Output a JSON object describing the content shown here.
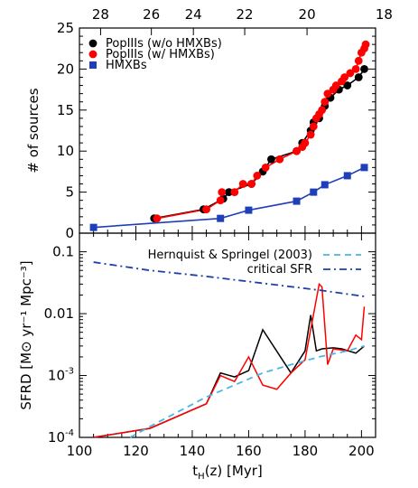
{
  "chart_data": [
    {
      "type": "scatter",
      "panel": "top",
      "ylabel": "# of sources",
      "ylim": [
        0,
        25
      ],
      "xlim": [
        100,
        205
      ],
      "yticks": [
        "0",
        "5",
        "10",
        "15",
        "20",
        "25"
      ],
      "top_axis_label_values": [
        28,
        26,
        24,
        22,
        20,
        18
      ],
      "top_axis_labels": [
        "28",
        "26",
        "24",
        "22",
        "20",
        "18"
      ],
      "top_axis_x_positions_data": [
        107.5,
        125.5,
        140.4,
        158.6,
        180.7,
        208.0
      ],
      "legend_position": "top-left",
      "series": [
        {
          "name": "PopIIIs (w/o HMXBs)",
          "color": "#000000",
          "marker": "circle",
          "x": [
            126.5,
            144,
            151,
            153,
            161,
            165,
            168,
            177,
            179,
            182,
            183,
            185,
            187,
            189,
            192,
            195,
            199,
            201
          ],
          "y": [
            1.8,
            2.9,
            4.2,
            5.0,
            6.0,
            7.5,
            9.0,
            10.0,
            11.0,
            12.5,
            13.5,
            14.0,
            15.5,
            16.5,
            17.5,
            18.0,
            19.0,
            20.0
          ]
        },
        {
          "name": "PopIIIs (w/ HMXBs)",
          "color": "#ff0000",
          "marker": "circle",
          "x": [
            127.5,
            145,
            150,
            150.5,
            155,
            158,
            161,
            163,
            166,
            171,
            177,
            179,
            180,
            182,
            183,
            184,
            185,
            186,
            187,
            188,
            190,
            191,
            193,
            194,
            196,
            198,
            199,
            200,
            201,
            201.5
          ],
          "y": [
            1.8,
            2.9,
            4.0,
            5.0,
            5.0,
            6.0,
            6.0,
            7.0,
            8.0,
            9.0,
            10.0,
            10.5,
            11.0,
            12.0,
            13.0,
            14.0,
            14.5,
            15.0,
            16.0,
            17.0,
            17.5,
            18.0,
            18.5,
            19.0,
            19.5,
            20.0,
            21.0,
            22.0,
            22.5,
            23.0
          ]
        },
        {
          "name": "HMXBs",
          "color": "#1f3fb8",
          "marker": "square",
          "x": [
            105,
            150,
            160,
            177,
            183,
            187,
            195,
            201
          ],
          "y": [
            0.7,
            1.8,
            2.8,
            3.9,
            5.0,
            5.9,
            7.0,
            8.0
          ]
        }
      ]
    },
    {
      "type": "line",
      "panel": "bottom",
      "xlabel": "t_H(z) [Myr]",
      "ylabel": "SFRD [M⊙ yr⁻¹ Mpc⁻³]",
      "yscale": "log",
      "ylim": [
        0.0001,
        0.2
      ],
      "xlim": [
        100,
        205
      ],
      "xticks": [
        "100",
        "120",
        "140",
        "160",
        "180",
        "200"
      ],
      "yticks": [
        "10⁻⁴",
        "10⁻³",
        "0.01",
        "0.1"
      ],
      "legend_position": "top-right",
      "series": [
        {
          "color": "#000000",
          "style": "solid",
          "x": [
            105,
            125,
            145,
            150,
            155,
            160,
            165,
            175,
            180,
            182,
            184,
            186,
            190,
            193,
            198,
            201
          ],
          "y": [
            0.0001,
            0.00014,
            0.00035,
            0.0011,
            0.00095,
            0.0012,
            0.0055,
            0.0011,
            0.0025,
            0.0095,
            0.0025,
            0.0027,
            0.0028,
            0.0027,
            0.0023,
            0.003
          ]
        },
        {
          "color": "#ff0000",
          "style": "solid",
          "x": [
            105,
            125,
            145,
            150,
            155,
            160,
            165,
            170,
            175,
            180,
            185,
            186,
            188,
            190,
            195,
            198,
            200,
            201
          ],
          "y": [
            0.0001,
            0.00014,
            0.00035,
            0.001,
            0.0008,
            0.002,
            0.0007,
            0.0006,
            0.0011,
            0.0018,
            0.03,
            0.027,
            0.0015,
            0.0027,
            0.0025,
            0.0045,
            0.0038,
            0.013
          ]
        },
        {
          "name": "Hernquist & Springel (2003)",
          "color": "#49b6e6",
          "style": "dashed",
          "x": [
            118,
            125,
            135,
            145,
            155,
            165,
            175,
            185,
            195,
            201
          ],
          "y": [
            0.0001,
            0.00015,
            0.00026,
            0.00045,
            0.0007,
            0.0011,
            0.0015,
            0.002,
            0.0025,
            0.003
          ]
        },
        {
          "name": "critical SFR",
          "color": "#1f3fa8",
          "style": "dashdot",
          "x": [
            105,
            125,
            145,
            165,
            185,
            201
          ],
          "y": [
            0.068,
            0.05,
            0.04,
            0.031,
            0.024,
            0.019
          ]
        }
      ]
    }
  ]
}
